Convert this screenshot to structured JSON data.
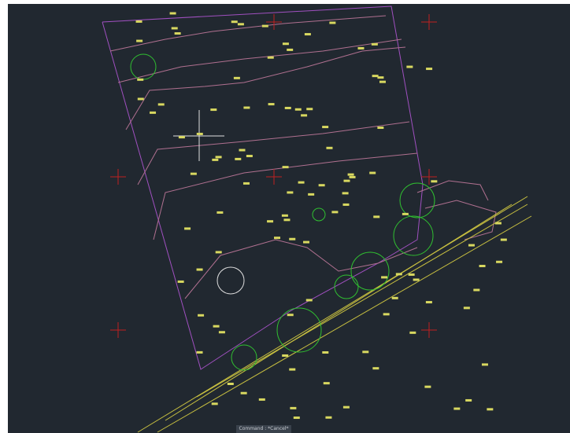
{
  "status_bar": {
    "command": "Command : *Cancel*"
  }
}
